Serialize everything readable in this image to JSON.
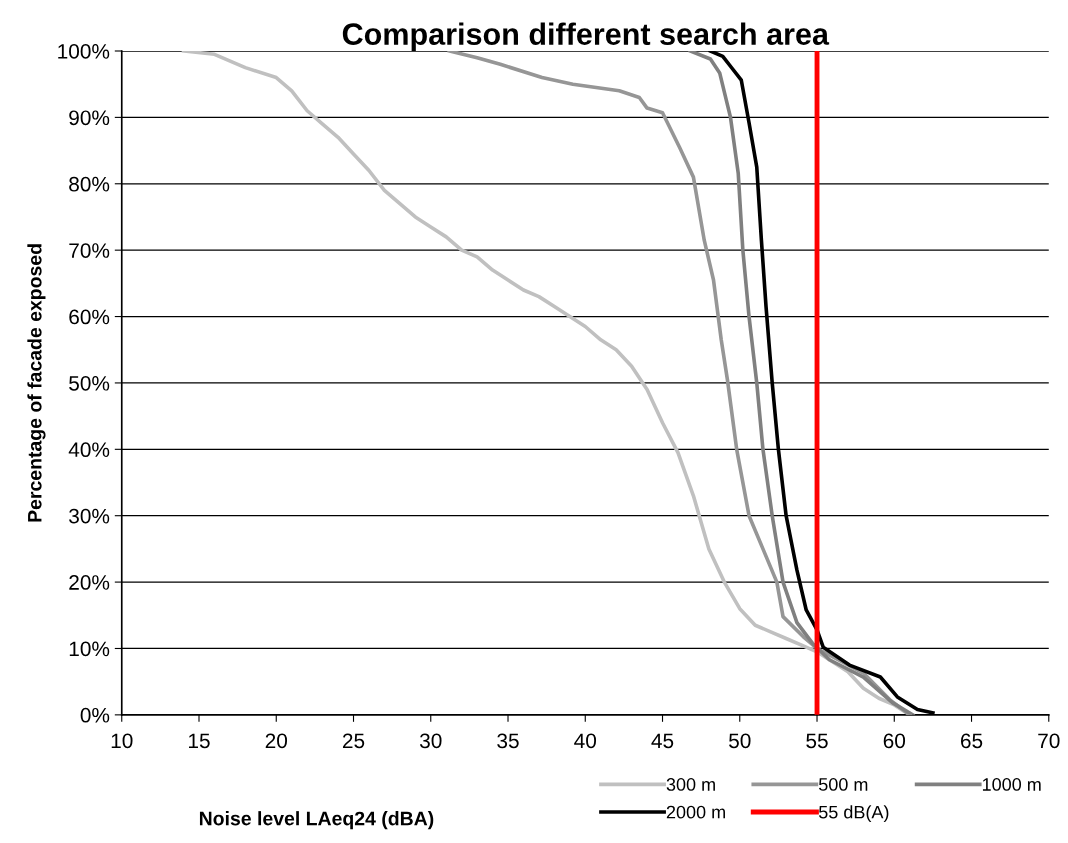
{
  "chart_data": {
    "type": "line",
    "title": "Comparison different search area",
    "xlabel": "Noise level LAeq24 (dBA)",
    "ylabel": "Percentage of facade exposed",
    "xlim": [
      10,
      70
    ],
    "xticks": [
      10,
      15,
      20,
      25,
      30,
      35,
      40,
      45,
      50,
      55,
      60,
      65,
      70
    ],
    "ylim": [
      0,
      100
    ],
    "yticks": [
      {
        "value": 0,
        "label": "0%"
      },
      {
        "value": 10,
        "label": "10%"
      },
      {
        "value": 20,
        "label": "20%"
      },
      {
        "value": 30,
        "label": "30%"
      },
      {
        "value": 40,
        "label": "40%"
      },
      {
        "value": 50,
        "label": "50%"
      },
      {
        "value": 60,
        "label": "60%"
      },
      {
        "value": 70,
        "label": "70%"
      },
      {
        "value": 80,
        "label": "80%"
      },
      {
        "value": 90,
        "label": "90%"
      },
      {
        "value": 100,
        "label": "100%"
      }
    ],
    "grid": "y",
    "legend": "bottom right",
    "marker": "none",
    "line_style": "solid",
    "series": [
      {
        "name": "300 m",
        "color": "#c0c0c0",
        "x": [
          14,
          16,
          18,
          20,
          21,
          22,
          23,
          24,
          25,
          26,
          27,
          28,
          29,
          30,
          31,
          32,
          33,
          34,
          35,
          36,
          37,
          38,
          39,
          40,
          41,
          42,
          43,
          44,
          45,
          46,
          47,
          48,
          49,
          50,
          51,
          52,
          53,
          54,
          55,
          56,
          57,
          58,
          59,
          60,
          61
        ],
        "values": [
          100,
          99.5,
          97.5,
          96,
          94,
          91,
          89,
          87,
          84.5,
          82,
          79,
          77,
          75,
          73.5,
          72,
          70,
          69,
          67,
          65.5,
          64,
          63,
          61.5,
          60,
          58.5,
          56.5,
          55,
          52.5,
          49,
          44,
          39.5,
          33,
          25,
          20,
          16,
          13.5,
          12.5,
          11.5,
          10.5,
          9.5,
          8,
          6.5,
          4,
          2.5,
          1.5,
          0
        ]
      },
      {
        "name": "500 m",
        "color": "#969696",
        "x": [
          31.2,
          33,
          34.5,
          37.2,
          39.2,
          42.2,
          43.5,
          44,
          45,
          46.1,
          47,
          47.7,
          48.3,
          48.8,
          49.2,
          49.8,
          50.6,
          51.5,
          52.4,
          52.8,
          54.1,
          55,
          58,
          59.7,
          61
        ],
        "values": [
          100,
          99,
          98,
          96,
          95,
          94,
          93,
          91.4,
          90.7,
          85.5,
          81,
          71.5,
          65.5,
          56.5,
          50.5,
          40,
          30,
          25,
          20,
          14.8,
          11.8,
          10,
          6.3,
          2.3,
          0
        ]
      },
      {
        "name": "1000 m",
        "color": "#808080",
        "x": [
          46.8,
          48.1,
          48.7,
          49.4,
          49.9,
          50.2,
          50.6,
          51.1,
          51.5,
          52.1,
          52.8,
          53.7,
          54.7,
          55.8,
          58,
          59.9,
          61.2
        ],
        "values": [
          100,
          98.8,
          96.7,
          90,
          81.6,
          70,
          60,
          50,
          40,
          30,
          20,
          13.9,
          10.8,
          8.3,
          5.7,
          1.8,
          0
        ]
      },
      {
        "name": "2000 m",
        "color": "#000000",
        "x": [
          48.1,
          48.9,
          49.5,
          50.1,
          50.6,
          51.1,
          51.4,
          51.7,
          52.1,
          52.5,
          53,
          53.7,
          54.3,
          55,
          55.4,
          57.1,
          59.1,
          60.2,
          61.5,
          62.5
        ],
        "values": [
          100,
          99.2,
          97.4,
          95.6,
          89.2,
          82.5,
          71.5,
          61.5,
          50,
          40,
          30,
          21.8,
          15.8,
          12.8,
          10.2,
          7.5,
          5.7,
          2.7,
          0.8,
          0.3
        ]
      }
    ],
    "ref_lines": [
      {
        "axis": "x",
        "value": 55,
        "label": "55 dB(A)",
        "color": "#ff0000",
        "line_style": "solid"
      }
    ]
  }
}
